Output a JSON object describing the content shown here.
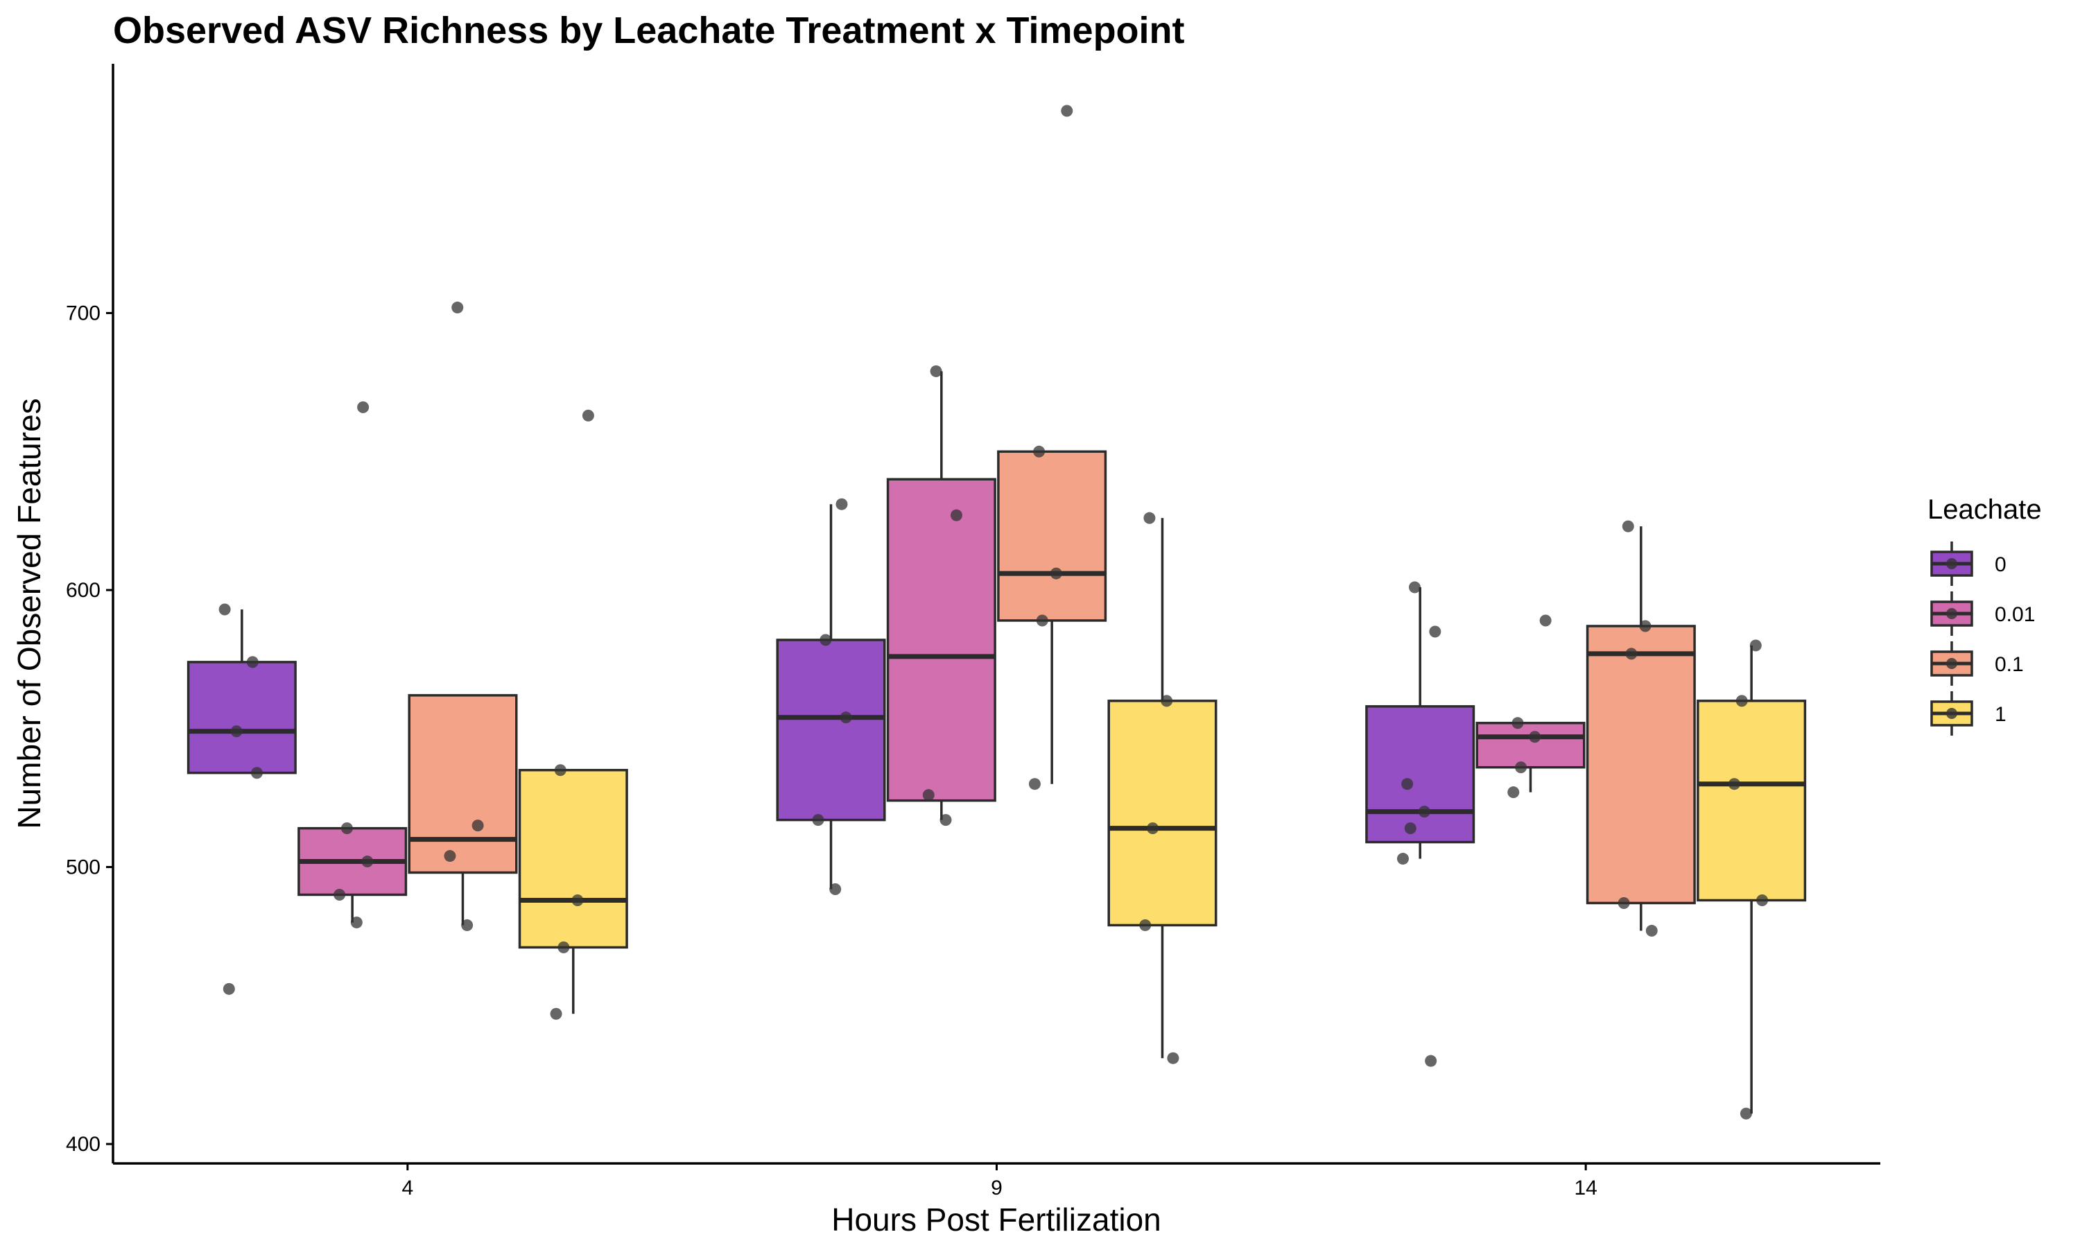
{
  "chart_data": {
    "type": "boxplot",
    "title": "Observed ASV Richness by Leachate Treatment x Timepoint",
    "xlabel": "Hours Post Fertilization",
    "ylabel": "Number of Observed Features",
    "ylim": [
      393,
      790
    ],
    "y_ticks": [
      400,
      500,
      600,
      700
    ],
    "categories": [
      "4",
      "9",
      "14"
    ],
    "legend": {
      "title": "Leachate",
      "position": "right",
      "entries": [
        "0",
        "0.01",
        "0.1",
        "1"
      ]
    },
    "colors": {
      "0": "#9249c2",
      "0.01": "#d06aac",
      "0.1": "#f3a184",
      "1": "#fddd67",
      "outline": "#2b2b2b",
      "point": "#333333"
    },
    "series": [
      {
        "name": "0",
        "boxes": [
          {
            "q1": 534,
            "median": 549,
            "q3": 574,
            "whisker_low": 534,
            "whisker_high": 593,
            "points": [
              593,
              574,
              549,
              534,
              456
            ]
          },
          {
            "q1": 517,
            "median": 554,
            "q3": 582,
            "whisker_low": 492,
            "whisker_high": 631,
            "points": [
              631,
              582,
              554,
              517,
              492
            ]
          },
          {
            "q1": 509,
            "median": 520,
            "q3": 558,
            "whisker_low": 503,
            "whisker_high": 601,
            "points": [
              601,
              585,
              530,
              520,
              514,
              503,
              430
            ]
          }
        ]
      },
      {
        "name": "0.01",
        "boxes": [
          {
            "q1": 490,
            "median": 502,
            "q3": 514,
            "whisker_low": 480,
            "whisker_high": 514,
            "points": [
              666,
              514,
              502,
              490,
              480
            ]
          },
          {
            "q1": 524,
            "median": 576,
            "q3": 640,
            "whisker_low": 517,
            "whisker_high": 679,
            "points": [
              679,
              627,
              526,
              517
            ]
          },
          {
            "q1": 536,
            "median": 547,
            "q3": 552,
            "whisker_low": 527,
            "whisker_high": 552,
            "points": [
              589,
              552,
              547,
              536,
              527
            ]
          }
        ]
      },
      {
        "name": "0.1",
        "boxes": [
          {
            "q1": 498,
            "median": 510,
            "q3": 562,
            "whisker_low": 479,
            "whisker_high": 562,
            "points": [
              702,
              515,
              504,
              479
            ]
          },
          {
            "q1": 589,
            "median": 606,
            "q3": 650,
            "whisker_low": 530,
            "whisker_high": 650,
            "points": [
              773,
              650,
              606,
              589,
              530
            ]
          },
          {
            "q1": 487,
            "median": 577,
            "q3": 587,
            "whisker_low": 477,
            "whisker_high": 623,
            "points": [
              623,
              587,
              577,
              487,
              477
            ]
          }
        ]
      },
      {
        "name": "1",
        "boxes": [
          {
            "q1": 471,
            "median": 488,
            "q3": 535,
            "whisker_low": 447,
            "whisker_high": 535,
            "points": [
              663,
              535,
              488,
              471,
              447
            ]
          },
          {
            "q1": 479,
            "median": 514,
            "q3": 560,
            "whisker_low": 431,
            "whisker_high": 626,
            "points": [
              626,
              560,
              514,
              479,
              431
            ]
          },
          {
            "q1": 488,
            "median": 530,
            "q3": 560,
            "whisker_low": 411,
            "whisker_high": 580,
            "points": [
              580,
              560,
              530,
              488,
              411
            ]
          }
        ]
      }
    ]
  }
}
